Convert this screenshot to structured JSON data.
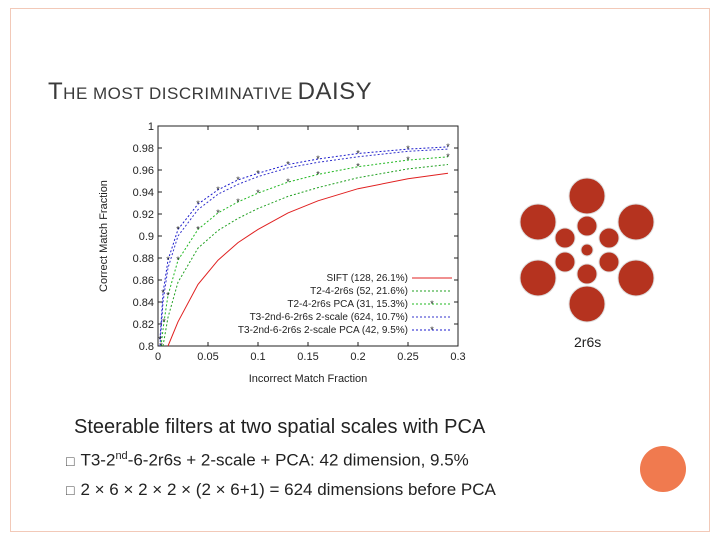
{
  "slide": {
    "title_first": "T",
    "title_rest": "HE MOST DISCRIMINATIVE",
    "title_last": "DAISY",
    "daisy_label": "2r6s",
    "bullet_main": "Steerable filters at two spatial scales with PCA",
    "sub1_prefix": "T3-2",
    "sub1_sup": "nd",
    "sub1_suffix": "-6-2r6s + 2-scale + PCA: 42 dimension, 9.5%",
    "sub2": "2 × 6 × 2 × 2 × (2 × 6+1) = 624 dimensions before PCA",
    "bullet_glyph": "",
    "sub_glyph": "□"
  },
  "colors": {
    "accent": "#d9531e",
    "daisy": "#b5331f",
    "deco": "#f07a4f"
  },
  "chart_data": {
    "type": "line",
    "xlabel": "Incorrect Match Fraction",
    "ylabel": "Correct Match Fraction",
    "xlim": [
      0,
      0.3
    ],
    "ylim": [
      0.8,
      1.0
    ],
    "xticks": [
      "0",
      "0.05",
      "0.1",
      "0.15",
      "0.2",
      "0.25",
      "0.3"
    ],
    "yticks": [
      "0.8",
      "0.82",
      "0.84",
      "0.86",
      "0.88",
      "0.9",
      "0.92",
      "0.94",
      "0.96",
      "0.98",
      "1"
    ],
    "legend_position": "bottom-right",
    "series": [
      {
        "name": "SIFT (128, 26.1%)",
        "color": "#e02020",
        "marker": false,
        "x": [
          0.01,
          0.02,
          0.04,
          0.06,
          0.08,
          0.1,
          0.13,
          0.16,
          0.2,
          0.25,
          0.29
        ],
        "y": [
          0.8,
          0.822,
          0.856,
          0.878,
          0.894,
          0.906,
          0.921,
          0.932,
          0.943,
          0.952,
          0.957
        ]
      },
      {
        "name": "T2-4-2r6s (52, 21.6%)",
        "color": "#22a022",
        "marker": false,
        "x": [
          0.005,
          0.01,
          0.02,
          0.04,
          0.06,
          0.08,
          0.1,
          0.13,
          0.16,
          0.2,
          0.25,
          0.29
        ],
        "y": [
          0.8,
          0.826,
          0.858,
          0.889,
          0.905,
          0.916,
          0.925,
          0.936,
          0.944,
          0.953,
          0.961,
          0.965
        ]
      },
      {
        "name": "T2-4-2r6s PCA (31, 15.3%)",
        "color": "#22b822",
        "marker": true,
        "x": [
          0.003,
          0.006,
          0.01,
          0.02,
          0.04,
          0.06,
          0.08,
          0.1,
          0.13,
          0.16,
          0.2,
          0.25,
          0.29
        ],
        "y": [
          0.8,
          0.822,
          0.846,
          0.878,
          0.906,
          0.921,
          0.931,
          0.939,
          0.949,
          0.956,
          0.963,
          0.969,
          0.972
        ]
      },
      {
        "name": "T3-2nd-6-2r6s 2-scale (624, 10.7%)",
        "color": "#3333cc",
        "marker": false,
        "x": [
          0.002,
          0.005,
          0.01,
          0.02,
          0.04,
          0.06,
          0.08,
          0.1,
          0.13,
          0.16,
          0.2,
          0.25,
          0.29
        ],
        "y": [
          0.8,
          0.84,
          0.871,
          0.9,
          0.924,
          0.938,
          0.947,
          0.954,
          0.962,
          0.967,
          0.972,
          0.977,
          0.979
        ]
      },
      {
        "name": "T3-2nd-6-2r6s 2-scale PCA (42, 9.5%)",
        "color": "#1a1acc",
        "marker": true,
        "x": [
          0.002,
          0.005,
          0.01,
          0.02,
          0.04,
          0.06,
          0.08,
          0.1,
          0.13,
          0.16,
          0.2,
          0.25,
          0.29
        ],
        "y": [
          0.806,
          0.848,
          0.878,
          0.906,
          0.929,
          0.942,
          0.951,
          0.957,
          0.965,
          0.97,
          0.975,
          0.979,
          0.981
        ]
      }
    ]
  }
}
